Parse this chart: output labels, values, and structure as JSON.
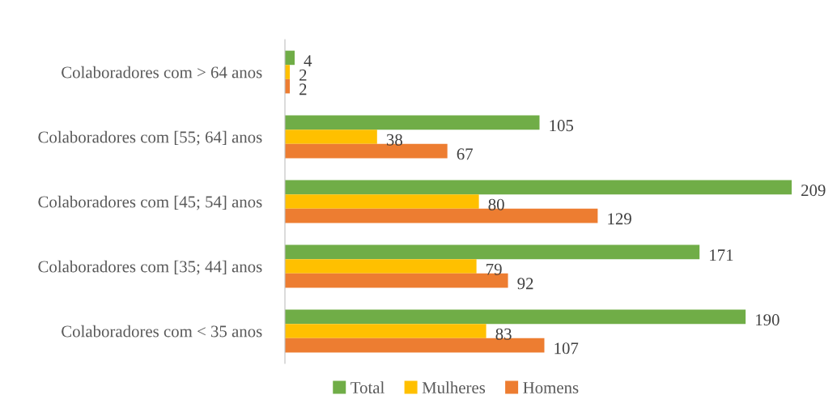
{
  "chart_data": {
    "type": "bar",
    "orientation": "horizontal",
    "categories": [
      "Colaboradores com > 64 anos",
      "Colaboradores com [55; 64] anos",
      "Colaboradores com [45; 54] anos",
      "Colaboradores com [35; 44] anos",
      "Colaboradores com < 35 anos"
    ],
    "series": [
      {
        "name": "Total",
        "color": "#70ad47",
        "values": [
          4,
          105,
          209,
          171,
          190
        ]
      },
      {
        "name": "Mulheres",
        "color": "#ffc000",
        "values": [
          2,
          38,
          80,
          79,
          83
        ]
      },
      {
        "name": "Homens",
        "color": "#ed7d31",
        "values": [
          2,
          67,
          129,
          92,
          107
        ]
      }
    ],
    "data_labels": true,
    "legend": "bottom",
    "grid": false
  }
}
